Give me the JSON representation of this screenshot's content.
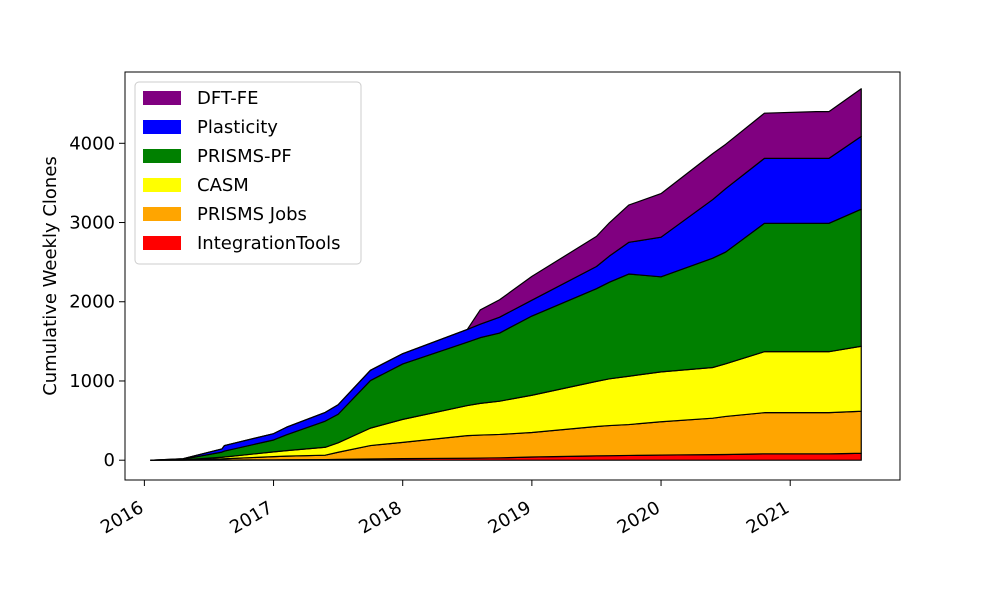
{
  "chart_data": {
    "type": "area",
    "stacked": true,
    "title": "",
    "xlabel": "",
    "ylabel": "Cumulative Weekly Clones",
    "xlim": [
      2015.85,
      2021.85
    ],
    "ylim": [
      -250,
      4900
    ],
    "x_ticks": [
      {
        "value": 2016,
        "label": "2016"
      },
      {
        "value": 2017,
        "label": "2017"
      },
      {
        "value": 2018,
        "label": "2018"
      },
      {
        "value": 2019,
        "label": "2019"
      },
      {
        "value": 2020,
        "label": "2020"
      },
      {
        "value": 2021,
        "label": "2021"
      }
    ],
    "y_ticks": [
      {
        "value": 0,
        "label": "0"
      },
      {
        "value": 1000,
        "label": "1000"
      },
      {
        "value": 2000,
        "label": "2000"
      },
      {
        "value": 3000,
        "label": "3000"
      },
      {
        "value": 4000,
        "label": "4000"
      }
    ],
    "legend_position": "upper-left",
    "x": [
      2016.05,
      2016.3,
      2016.6,
      2016.62,
      2017.0,
      2017.1,
      2017.4,
      2017.5,
      2017.75,
      2018.0,
      2018.5,
      2018.6,
      2018.75,
      2019.0,
      2019.5,
      2019.6,
      2019.75,
      2020.0,
      2020.4,
      2020.5,
      2020.8,
      2021.2,
      2021.3,
      2021.55
    ],
    "series": [
      {
        "name": "IntegrationTools",
        "color": "#ff0000",
        "values": [
          0,
          0,
          2,
          2,
          5,
          6,
          8,
          10,
          15,
          20,
          25,
          27,
          30,
          40,
          55,
          57,
          60,
          65,
          70,
          72,
          80,
          80,
          80,
          88
        ]
      },
      {
        "name": "PRISMS Jobs",
        "color": "#ffa500",
        "values": [
          0,
          2,
          15,
          16,
          40,
          45,
          55,
          90,
          170,
          205,
          285,
          290,
          295,
          310,
          370,
          380,
          390,
          420,
          460,
          480,
          520,
          520,
          520,
          530
        ]
      },
      {
        "name": "CASM",
        "color": "#ffff00",
        "values": [
          0,
          3,
          20,
          22,
          60,
          70,
          100,
          120,
          220,
          290,
          380,
          400,
          420,
          470,
          570,
          590,
          610,
          630,
          640,
          665,
          770,
          770,
          770,
          820
        ]
      },
      {
        "name": "PRISMS-PF",
        "color": "#008000",
        "values": [
          0,
          8,
          65,
          75,
          150,
          200,
          330,
          360,
          600,
          700,
          800,
          830,
          860,
          1000,
          1170,
          1220,
          1290,
          1200,
          1380,
          1410,
          1620,
          1620,
          1620,
          1730
        ]
      },
      {
        "name": "Plasticity",
        "color": "#0000ff",
        "values": [
          0,
          6,
          40,
          70,
          80,
          95,
          110,
          120,
          130,
          130,
          160,
          170,
          200,
          200,
          280,
          330,
          400,
          500,
          740,
          800,
          820,
          820,
          820,
          920
        ]
      },
      {
        "name": "DFT-FE",
        "color": "#800080",
        "values": [
          0,
          0,
          0,
          0,
          0,
          0,
          0,
          0,
          0,
          0,
          0,
          180,
          220,
          300,
          380,
          420,
          470,
          550,
          580,
          560,
          570,
          590,
          590,
          600
        ]
      }
    ]
  }
}
